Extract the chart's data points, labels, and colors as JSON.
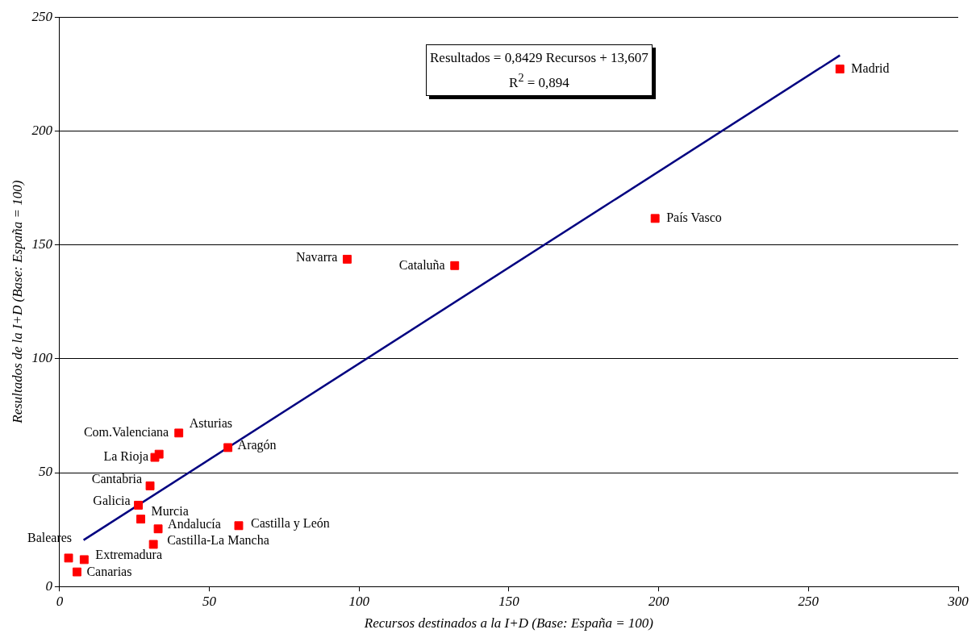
{
  "chart_data": {
    "type": "scatter",
    "xlabel": "Recursos destinados a la I+D (Base: España = 100)",
    "ylabel": "Resultados de la I+D (Base: España = 100)",
    "xlim": [
      0,
      300
    ],
    "xticks": [
      0,
      50,
      100,
      150,
      200,
      250,
      300
    ],
    "ylim": [
      0,
      250
    ],
    "yticks": [
      0,
      50,
      100,
      150,
      200,
      250
    ],
    "grid": "y",
    "legend": false,
    "series": [
      {
        "marker": "square",
        "color": "#ff0000",
        "x": [
          260.5,
          198.8,
          96.0,
          131.9,
          39.8,
          33.2,
          31.8,
          56.2,
          30.2,
          26.3,
          27.1,
          32.9,
          59.8,
          31.3,
          3.0,
          8.2,
          5.8
        ],
        "values": [
          227.2,
          161.6,
          143.7,
          140.9,
          67.4,
          58.1,
          56.7,
          61.0,
          44.2,
          35.7,
          29.6,
          25.3,
          26.7,
          18.5,
          12.5,
          11.8,
          6.4
        ]
      },
      {
        "type": "line",
        "marker": "none",
        "color": "#000080",
        "x": [
          8,
          260.5
        ],
        "values": [
          20.4,
          233.2
        ]
      }
    ],
    "annotations": [
      {
        "text": "Madrid",
        "x": 260.5,
        "y": 227.2
      },
      {
        "text": "País Vasco",
        "x": 198.8,
        "y": 161.6
      },
      {
        "text": "Navarra",
        "x": 96.0,
        "y": 143.7
      },
      {
        "text": "Cataluña",
        "x": 131.9,
        "y": 140.9
      },
      {
        "text": "Asturias",
        "x": 39.8,
        "y": 67.4
      },
      {
        "text": "Com.Valenciana",
        "x": 33.2,
        "y": 58.1
      },
      {
        "text": "La Rioja",
        "x": 31.8,
        "y": 56.7
      },
      {
        "text": "Aragón",
        "x": 56.2,
        "y": 61.0
      },
      {
        "text": "Cantabria",
        "x": 30.2,
        "y": 44.2
      },
      {
        "text": "Galicia",
        "x": 26.3,
        "y": 35.7
      },
      {
        "text": "Murcia",
        "x": 27.1,
        "y": 29.6
      },
      {
        "text": "Andalucía",
        "x": 32.9,
        "y": 25.3
      },
      {
        "text": "Castilla y León",
        "x": 59.8,
        "y": 26.7
      },
      {
        "text": "Castilla-La Mancha",
        "x": 31.3,
        "y": 18.5
      },
      {
        "text": "Baleares",
        "x": 3.0,
        "y": 12.5
      },
      {
        "text": "Extremadura",
        "x": 8.2,
        "y": 11.8
      },
      {
        "text": "Canarias",
        "x": 5.8,
        "y": 6.4
      },
      "Resultados = 0,8429 Recursos + 13,607\nR$^{2}$ = 0,894"
    ]
  }
}
